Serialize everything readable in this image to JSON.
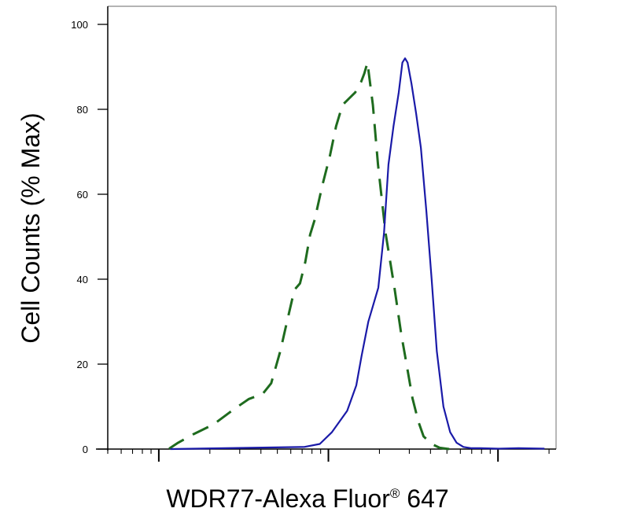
{
  "chart_data": {
    "type": "line",
    "xlabel": "WDR77-Alexa Fluor",
    "xlabel_superscript": "®",
    "xlabel_suffix": " 647",
    "ylabel": "Cell Counts (% Max)",
    "xscale": "log",
    "xlim": [
      0.5,
      220
    ],
    "ylim": [
      0,
      100
    ],
    "yticks": [
      "0",
      "20",
      "40",
      "60",
      "80",
      "100"
    ],
    "ytick_values": [
      0,
      20,
      40,
      60,
      80,
      100
    ],
    "xticks_major": [
      1,
      10,
      100
    ],
    "grid": false,
    "legend": "none",
    "series": [
      {
        "style": "dashed",
        "color": "#1e6b1e",
        "x": [
          1.15,
          1.3,
          1.6,
          2.1,
          2.8,
          3.4,
          4.1,
          4.6,
          5.2,
          5.7,
          6.3,
          6.8,
          7.3,
          7.8,
          8.3,
          9.2,
          10.2,
          11.1,
          12.1,
          13.2,
          14.4,
          15.6,
          16.3,
          17.0,
          18.3,
          19.6,
          21.7,
          24.5,
          26.9,
          28.9,
          31.3,
          33.9,
          36.4,
          40.6,
          45.3,
          51.6
        ],
        "values": [
          0.1,
          1.5,
          3.5,
          5.8,
          9.5,
          11.8,
          13,
          15.5,
          23,
          30,
          37.5,
          39,
          44,
          50.5,
          54,
          62,
          69,
          76,
          81,
          82.5,
          84,
          86.5,
          88.5,
          91,
          81,
          67,
          51,
          38,
          27,
          20,
          12,
          6.5,
          3,
          1.2,
          0.3,
          0
        ]
      },
      {
        "style": "solid",
        "color": "#1a1aa8",
        "x": [
          1.17,
          7.2,
          8.9,
          10.5,
          12.9,
          14.6,
          15.7,
          17.2,
          19.7,
          21.3,
          22.6,
          24.2,
          26.0,
          27.3,
          28.3,
          29.3,
          30.9,
          32.9,
          35.1,
          37.8,
          40.6,
          43.6,
          47.7,
          52.2,
          57.0,
          62.5,
          69.8,
          78.7,
          100,
          132,
          188
        ],
        "values": [
          0,
          0.5,
          1.2,
          4,
          9,
          15,
          22,
          30,
          38,
          51,
          67,
          76,
          84,
          91,
          92,
          91,
          86,
          79,
          71,
          56,
          40,
          23,
          10,
          4,
          1.5,
          0.5,
          0.2,
          0.2,
          0.1,
          0.2,
          0.1
        ]
      }
    ]
  }
}
